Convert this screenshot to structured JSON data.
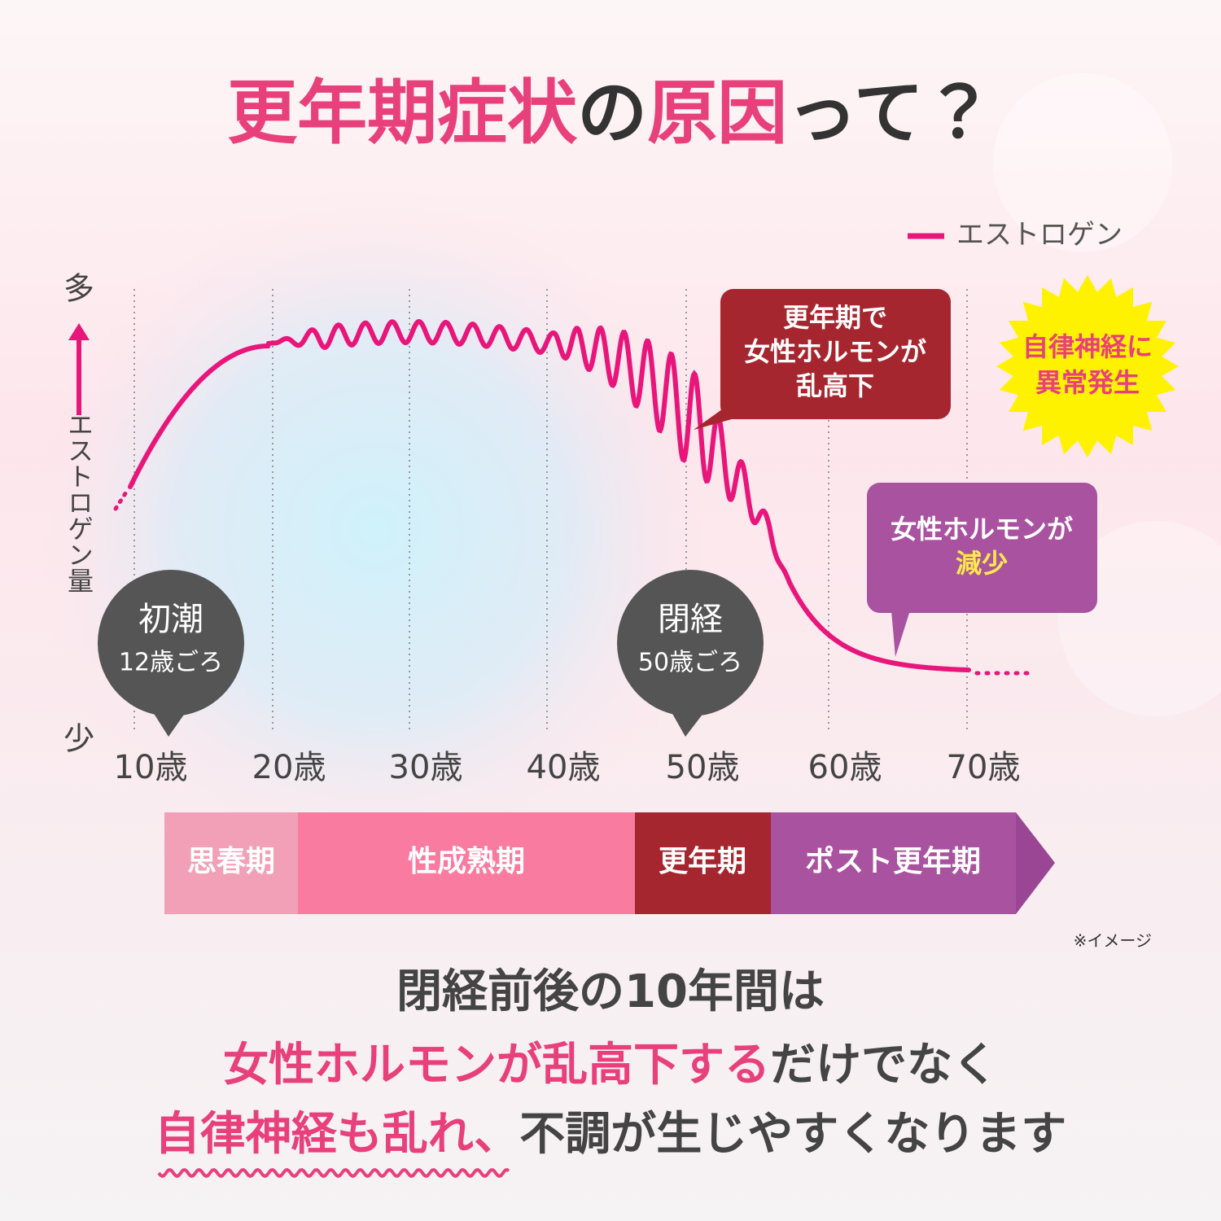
{
  "header": {
    "title": [
      "更年期症状",
      "の",
      "原因",
      "って？"
    ]
  },
  "legend": "エストロゲン",
  "y_axis": {
    "top": "多",
    "label": "エストロゲン量",
    "bottom": "少"
  },
  "x_axis": {
    "labels": [
      "10歳",
      "20歳",
      "30歳",
      "40歳",
      "50歳",
      "60歳",
      "70歳"
    ]
  },
  "callouts": {
    "fluctuation": [
      "更年期で",
      "女性ホルモンが",
      "乱高下"
    ],
    "autonomic": [
      "自律神経に",
      "異常発生"
    ],
    "decrease": [
      "女性ホルモンが",
      "減少"
    ],
    "menarche": {
      "title": "初潮",
      "age": "12歳ごろ"
    },
    "menopause": {
      "title": "閉経",
      "age": "50歳ごろ"
    }
  },
  "phases": [
    "思春期",
    "性成熟期",
    "更年期",
    "ポスト更年期"
  ],
  "note": "※イメージ",
  "footer": {
    "line1": "閉経前後の10年間は",
    "line2": [
      "女性ホルモンが乱高下する",
      "だけでなく"
    ],
    "line3": [
      "自律神経も乱れ、",
      "不調が生じやすくなります"
    ]
  }
}
